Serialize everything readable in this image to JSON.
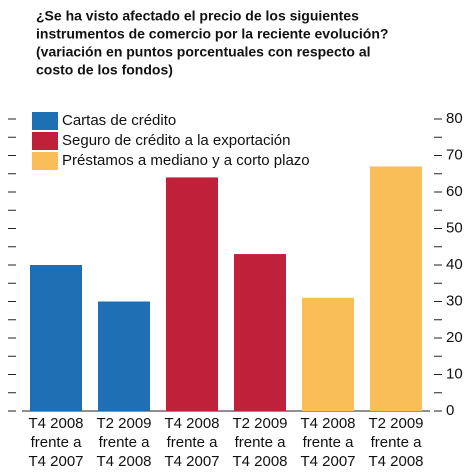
{
  "chart_data": {
    "type": "bar",
    "title": [
      "¿Se ha visto afectado el precio de los siguientes",
      "instrumentos de comercio por la reciente evolución?",
      "(variación en puntos porcentuales con respecto al",
      "costo de los fondos)"
    ],
    "categories": [
      [
        "T4 2008",
        "frente a",
        "T4 2007"
      ],
      [
        "T2 2009",
        "frente a",
        "T4 2008"
      ],
      [
        "T4 2008",
        "frente a",
        "T4 2007"
      ],
      [
        "T2 2009",
        "frente a",
        "T4 2008"
      ],
      [
        "T4 2008",
        "frente a",
        "T4 2007"
      ],
      [
        "T2 2009",
        "frente a",
        "T4 2008"
      ]
    ],
    "series": [
      {
        "name": "Cartas de crédito",
        "color": "#1f6fb4",
        "values": [
          40,
          30,
          null,
          null,
          null,
          null
        ]
      },
      {
        "name": "Seguro de crédito a la exportación",
        "color": "#c0213a",
        "values": [
          null,
          null,
          64,
          43,
          null,
          null
        ]
      },
      {
        "name": "Préstamos a mediano y a corto plazo",
        "color": "#f9be57",
        "values": [
          null,
          null,
          null,
          null,
          31,
          67
        ]
      }
    ],
    "ylim": [
      0,
      80
    ],
    "yticks": [
      0,
      10,
      20,
      30,
      40,
      50,
      60,
      70,
      80
    ],
    "minor_yticks": [
      5,
      15,
      25,
      35,
      45,
      55,
      65,
      75
    ]
  }
}
